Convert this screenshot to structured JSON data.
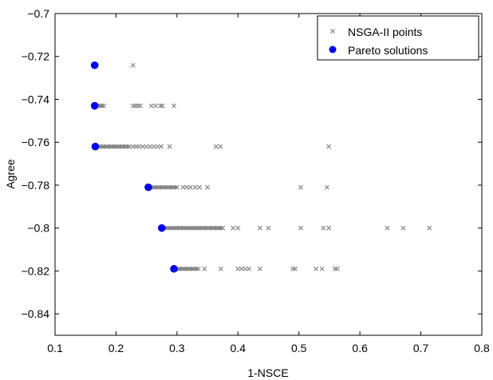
{
  "chart_data": {
    "type": "scatter",
    "xlabel": "1-NSCE",
    "ylabel": "Agree",
    "xlim": [
      0.1,
      0.8
    ],
    "ylim": [
      -0.85,
      -0.7
    ],
    "x_ticks": [
      0.1,
      0.2,
      0.3,
      0.4,
      0.5,
      0.6,
      0.7,
      0.8
    ],
    "y_ticks": [
      -0.7,
      -0.72,
      -0.74,
      -0.76,
      -0.78,
      -0.8,
      -0.82,
      -0.84
    ],
    "x_tick_labels": [
      "0.1",
      "0.2",
      "0.3",
      "0.4",
      "0.5",
      "0.6",
      "0.7",
      "0.8"
    ],
    "y_tick_labels": [
      "−0.7",
      "−0.72",
      "−0.74",
      "−0.76",
      "−0.78",
      "−0.8",
      "−0.82",
      "−0.84"
    ],
    "grid": false,
    "legend_position": "top-right",
    "series": [
      {
        "name": "NSGA-II points",
        "marker": "x",
        "color": "#888888",
        "x": [
          0.167,
          0.228,
          0.167,
          0.171,
          0.176,
          0.18,
          0.228,
          0.232,
          0.236,
          0.24,
          0.258,
          0.265,
          0.273,
          0.276,
          0.295,
          0.167,
          0.172,
          0.178,
          0.185,
          0.192,
          0.2,
          0.205,
          0.21,
          0.216,
          0.222,
          0.228,
          0.233,
          0.238,
          0.244,
          0.25,
          0.256,
          0.262,
          0.268,
          0.274,
          0.288,
          0.364,
          0.371,
          0.549,
          0.253,
          0.262,
          0.27,
          0.278,
          0.286,
          0.294,
          0.3,
          0.31,
          0.316,
          0.322,
          0.33,
          0.337,
          0.35,
          0.503,
          0.546,
          0.274,
          0.285,
          0.295,
          0.305,
          0.315,
          0.325,
          0.335,
          0.343,
          0.351,
          0.359,
          0.367,
          0.375,
          0.392,
          0.4,
          0.436,
          0.45,
          0.503,
          0.54,
          0.549,
          0.645,
          0.671,
          0.714,
          0.295,
          0.303,
          0.311,
          0.319,
          0.327,
          0.335,
          0.345,
          0.372,
          0.4,
          0.406,
          0.412,
          0.418,
          0.436,
          0.49,
          0.494,
          0.528,
          0.538,
          0.559,
          0.563
        ],
        "y": [
          -0.7241,
          -0.7241,
          -0.743,
          -0.743,
          -0.743,
          -0.743,
          -0.743,
          -0.743,
          -0.743,
          -0.743,
          -0.743,
          -0.743,
          -0.743,
          -0.743,
          -0.743,
          -0.762,
          -0.762,
          -0.762,
          -0.762,
          -0.762,
          -0.762,
          -0.762,
          -0.762,
          -0.762,
          -0.762,
          -0.762,
          -0.762,
          -0.762,
          -0.762,
          -0.762,
          -0.762,
          -0.762,
          -0.762,
          -0.762,
          -0.762,
          -0.762,
          -0.762,
          -0.762,
          -0.781,
          -0.781,
          -0.781,
          -0.781,
          -0.781,
          -0.781,
          -0.781,
          -0.781,
          -0.781,
          -0.781,
          -0.781,
          -0.781,
          -0.781,
          -0.781,
          -0.781,
          -0.8,
          -0.8,
          -0.8,
          -0.8,
          -0.8,
          -0.8,
          -0.8,
          -0.8,
          -0.8,
          -0.8,
          -0.8,
          -0.8,
          -0.8,
          -0.8,
          -0.8,
          -0.8,
          -0.8,
          -0.8,
          -0.8,
          -0.8,
          -0.8,
          -0.8,
          -0.819,
          -0.819,
          -0.819,
          -0.819,
          -0.819,
          -0.819,
          -0.819,
          -0.819,
          -0.819,
          -0.819,
          -0.819,
          -0.819,
          -0.819,
          -0.819,
          -0.819,
          -0.819,
          -0.819,
          -0.819,
          -0.819
        ]
      },
      {
        "name": "Pareto solutions",
        "marker": "circle",
        "color": "#0000ee",
        "x": [
          0.165,
          0.165,
          0.166,
          0.253,
          0.275,
          0.295
        ],
        "y": [
          -0.7241,
          -0.743,
          -0.762,
          -0.781,
          -0.8,
          -0.819
        ]
      }
    ]
  }
}
